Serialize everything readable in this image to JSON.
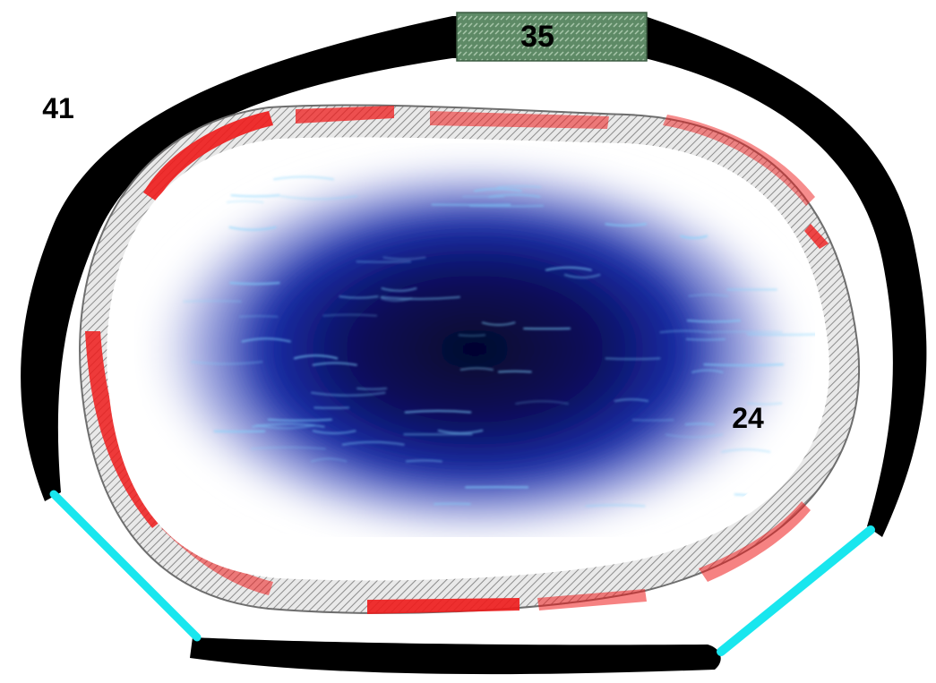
{
  "labels": {
    "label_41": "41",
    "label_35": "35",
    "label_24": "24"
  },
  "colors": {
    "outer_wall": "#000000",
    "connector": "#19e6ee",
    "inner_red": "#ee1b1b",
    "hatch_base": "#e9e9e9",
    "hatch_line": "#8c8c8c",
    "sign_fill": "#5e8a66",
    "water_dark": "#05052a",
    "water_mid": "#1a2ea8",
    "water_light": "#7fd4ff"
  },
  "icons": {
    "top_marker": "diamond-plate-sign",
    "center": "water-pool"
  }
}
